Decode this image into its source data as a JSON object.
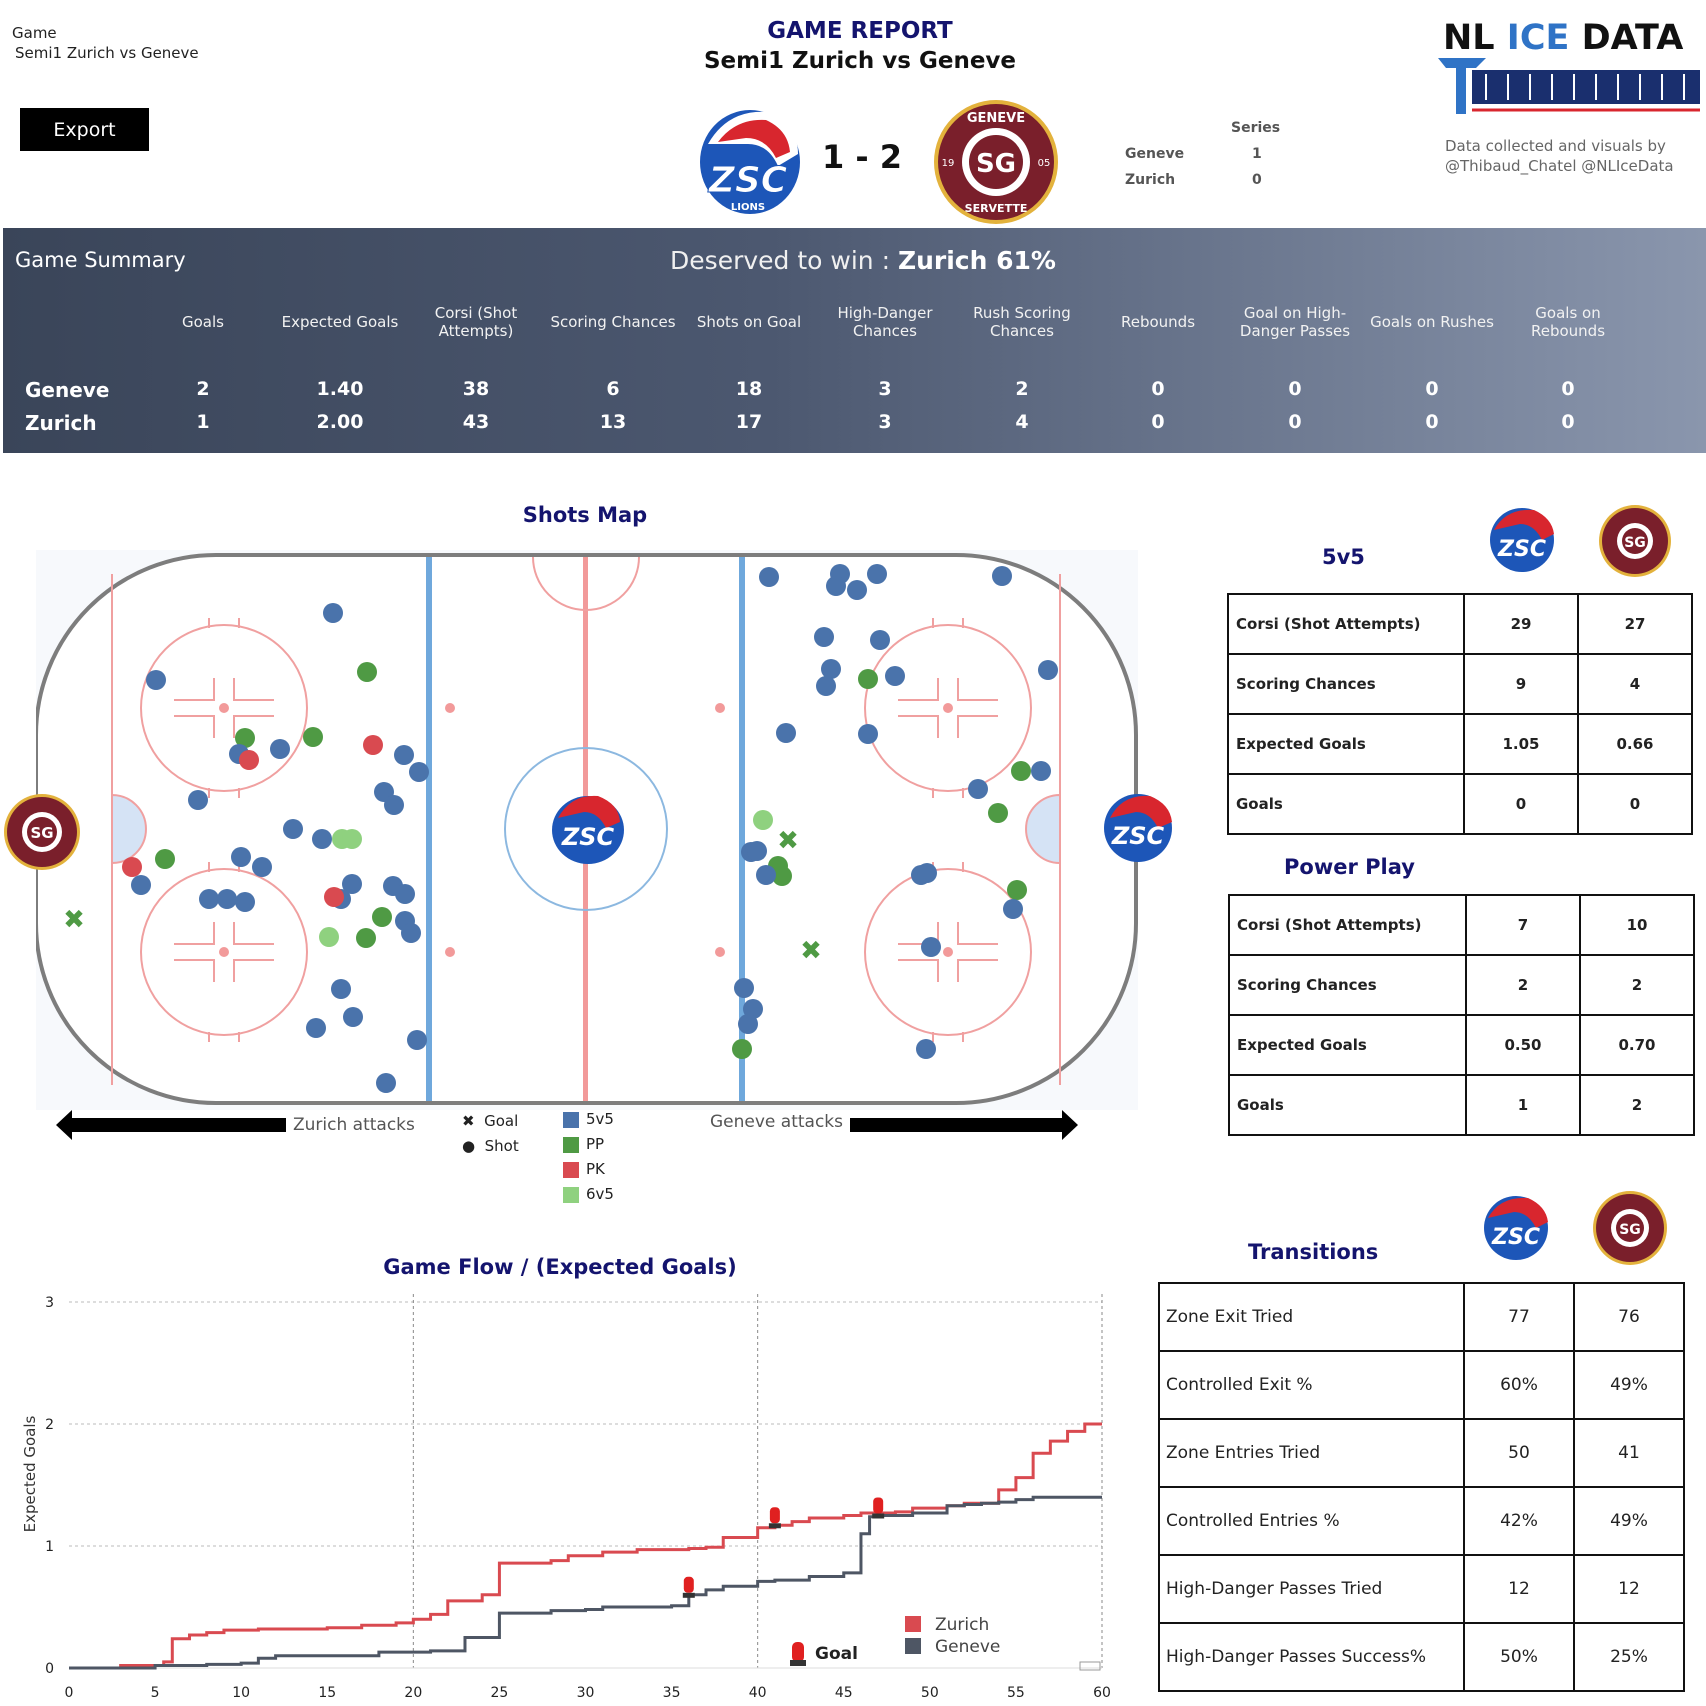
{
  "filter": {
    "label": "Game",
    "value": "Semi1 Zurich vs Geneve"
  },
  "export_label": "Export",
  "header": {
    "title": "GAME REPORT",
    "subtitle": "Semi1 Zurich vs Geneve",
    "score": "1 - 2",
    "series": {
      "heading": "Series",
      "rows": [
        {
          "team": "Geneve",
          "value": "1"
        },
        {
          "team": "Zurich",
          "value": "0"
        }
      ]
    },
    "brand": {
      "nl": "NL",
      "ice": "ICE",
      "data": "DATA",
      "credit_line1": "Data collected and visuals by",
      "credit_line2": "@Thibaud_Chatel @NLIceData"
    }
  },
  "teams": {
    "zurich": {
      "logo_text": "ZSC",
      "logo_sub": "LIONS",
      "color": "#1d56b8",
      "accent": "#d8262e"
    },
    "geneve": {
      "logo_top": "GENEVE",
      "logo_bottom": "SERVETTE",
      "logo_left": "19",
      "logo_right": "05",
      "color": "#7a1f2b"
    }
  },
  "summary": {
    "title": "Game Summary",
    "deserved_prefix": "Deserved to win : ",
    "deserved_value": "Zurich 61%",
    "columns": [
      "Goals",
      "Expected Goals",
      "Corsi (Shot Attempts)",
      "Scoring Chances",
      "Shots on Goal",
      "High-Danger Chances",
      "Rush Scoring Chances",
      "Rebounds",
      "Goal on High-Danger Passes",
      "Goals on Rushes",
      "Goals on Rebounds"
    ],
    "rows": [
      {
        "team": "Geneve",
        "values": [
          "2",
          "1.40",
          "38",
          "6",
          "18",
          "3",
          "2",
          "0",
          "0",
          "0",
          "0"
        ]
      },
      {
        "team": "Zurich",
        "values": [
          "1",
          "2.00",
          "43",
          "13",
          "17",
          "3",
          "4",
          "0",
          "0",
          "0",
          "0"
        ]
      }
    ]
  },
  "shots_map": {
    "title": "Shots Map",
    "left_label": "Zurich attacks",
    "right_label": "Geneve attacks",
    "legend_shape": [
      {
        "symbol": "✖",
        "label": "Goal"
      },
      {
        "symbol": "●",
        "label": "Shot"
      }
    ],
    "legend_color": [
      {
        "label": "5v5",
        "color": "#4a73ab"
      },
      {
        "label": "PP",
        "color": "#4f9a44"
      },
      {
        "label": "PK",
        "color": "#d94a50"
      },
      {
        "label": "6v5",
        "color": "#8fd17f"
      }
    ]
  },
  "five_v_five": {
    "title": "5v5",
    "rows": [
      {
        "label": "Corsi (Shot Attempts)",
        "zurich": "29",
        "geneve": "27"
      },
      {
        "label": "Scoring Chances",
        "zurich": "9",
        "geneve": "4"
      },
      {
        "label": "Expected Goals",
        "zurich": "1.05",
        "geneve": "0.66"
      },
      {
        "label": "Goals",
        "zurich": "0",
        "geneve": "0"
      }
    ]
  },
  "power_play": {
    "title": "Power Play",
    "rows": [
      {
        "label": "Corsi (Shot Attempts)",
        "zurich": "7",
        "geneve": "10"
      },
      {
        "label": "Scoring Chances",
        "zurich": "2",
        "geneve": "2"
      },
      {
        "label": "Expected Goals",
        "zurich": "0.50",
        "geneve": "0.70"
      },
      {
        "label": "Goals",
        "zurich": "1",
        "geneve": "2"
      }
    ]
  },
  "transitions": {
    "title": "Transitions",
    "rows": [
      {
        "label": "Zone Exit Tried",
        "zurich": "77",
        "geneve": "76"
      },
      {
        "label": "Controlled Exit %",
        "zurich": "60%",
        "geneve": "49%"
      },
      {
        "label": "Zone Entries Tried",
        "zurich": "50",
        "geneve": "41"
      },
      {
        "label": "Controlled Entries %",
        "zurich": "42%",
        "geneve": "49%"
      },
      {
        "label": "High-Danger Passes Tried",
        "zurich": "12",
        "geneve": "12"
      },
      {
        "label": "High-Danger Passes Success%",
        "zurich": "50%",
        "geneve": "25%"
      }
    ]
  },
  "chart_data": {
    "type": "line",
    "title": "Game Flow  /  (Expected Goals)",
    "ylabel": "Expected Goals",
    "xlim": [
      0,
      60
    ],
    "ylim": [
      0,
      3
    ],
    "x_ticks": [
      0,
      5,
      10,
      15,
      20,
      25,
      30,
      35,
      40,
      45,
      50,
      55,
      60
    ],
    "y_ticks": [
      0,
      1,
      2,
      3
    ],
    "period_lines": [
      20,
      40,
      60
    ],
    "goal_legend": "Goal",
    "series": [
      {
        "name": "Zurich",
        "color": "#d94a50",
        "points": [
          [
            0,
            0
          ],
          [
            3,
            0.02
          ],
          [
            5.5,
            0.05
          ],
          [
            6,
            0.24
          ],
          [
            7,
            0.27
          ],
          [
            8,
            0.29
          ],
          [
            9,
            0.31
          ],
          [
            11,
            0.32
          ],
          [
            15,
            0.33
          ],
          [
            17,
            0.35
          ],
          [
            19,
            0.37
          ],
          [
            20,
            0.4
          ],
          [
            21,
            0.44
          ],
          [
            22,
            0.55
          ],
          [
            24,
            0.6
          ],
          [
            25,
            0.86
          ],
          [
            28,
            0.88
          ],
          [
            29,
            0.92
          ],
          [
            31,
            0.95
          ],
          [
            33,
            0.97
          ],
          [
            36,
            0.98
          ],
          [
            37,
            0.99
          ],
          [
            38,
            1.07
          ],
          [
            40,
            1.15
          ],
          [
            41,
            1.17
          ],
          [
            42,
            1.2
          ],
          [
            43,
            1.23
          ],
          [
            45,
            1.25
          ],
          [
            46,
            1.27
          ],
          [
            48,
            1.28
          ],
          [
            49,
            1.31
          ],
          [
            51,
            1.33
          ],
          [
            52,
            1.35
          ],
          [
            54,
            1.46
          ],
          [
            55,
            1.56
          ],
          [
            56,
            1.76
          ],
          [
            57,
            1.86
          ],
          [
            58,
            1.94
          ],
          [
            59,
            2.0
          ],
          [
            60,
            2.0
          ]
        ],
        "goals": [
          41
        ]
      },
      {
        "name": "Geneve",
        "color": "#4e5664",
        "points": [
          [
            0,
            0
          ],
          [
            5,
            0.02
          ],
          [
            8,
            0.03
          ],
          [
            10,
            0.04
          ],
          [
            11,
            0.08
          ],
          [
            12,
            0.1
          ],
          [
            18,
            0.13
          ],
          [
            21,
            0.14
          ],
          [
            23,
            0.25
          ],
          [
            25,
            0.45
          ],
          [
            28,
            0.47
          ],
          [
            30,
            0.48
          ],
          [
            31,
            0.5
          ],
          [
            35,
            0.51
          ],
          [
            36,
            0.6
          ],
          [
            37,
            0.64
          ],
          [
            38,
            0.67
          ],
          [
            40,
            0.71
          ],
          [
            41,
            0.72
          ],
          [
            43,
            0.75
          ],
          [
            45,
            0.78
          ],
          [
            46,
            1.1
          ],
          [
            46.5,
            1.24
          ],
          [
            47,
            1.25
          ],
          [
            49,
            1.27
          ],
          [
            51,
            1.33
          ],
          [
            52,
            1.34
          ],
          [
            53,
            1.35
          ],
          [
            54,
            1.36
          ],
          [
            55,
            1.38
          ],
          [
            56,
            1.4
          ],
          [
            60,
            1.4
          ]
        ],
        "goals": [
          36,
          47
        ]
      }
    ]
  }
}
